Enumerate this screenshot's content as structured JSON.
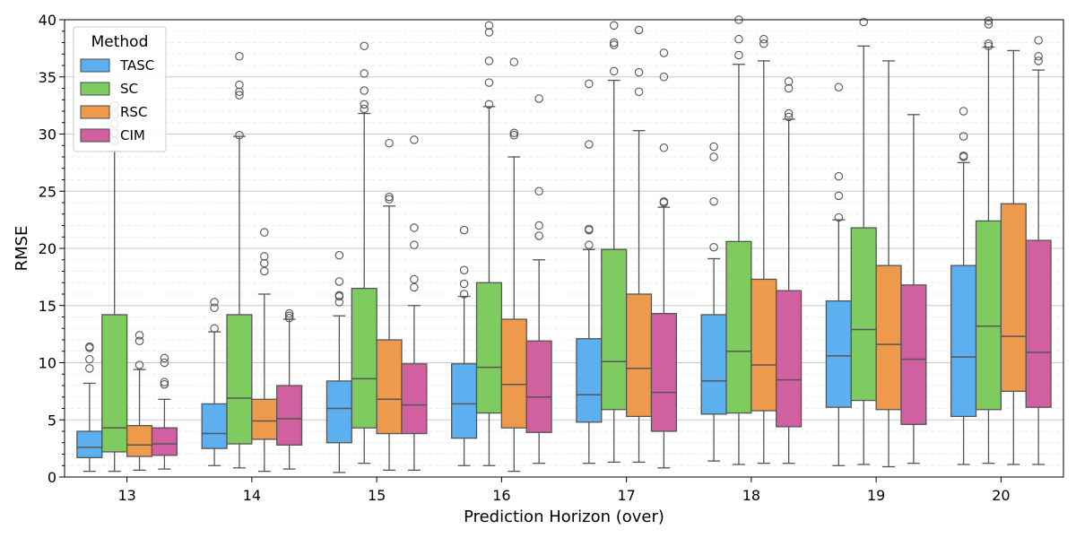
{
  "chart_data": {
    "type": "box",
    "title": "",
    "xlabel": "Prediction Horizon (over)",
    "ylabel": "RMSE",
    "ylim": [
      0,
      40
    ],
    "yticks": [
      0,
      5,
      10,
      15,
      20,
      25,
      30,
      35,
      40
    ],
    "grid": "horizontal",
    "legend": {
      "title": "Method",
      "placement": "top-left"
    },
    "categories": [
      "13",
      "14",
      "15",
      "16",
      "17",
      "18",
      "19",
      "20"
    ],
    "series": [
      {
        "name": "TASC",
        "color": "#5DB0F0",
        "boxes": [
          {
            "whislo": 0.5,
            "q1": 1.7,
            "med": 2.6,
            "q3": 4.0,
            "whishi": 8.2,
            "fliers": [
              9.5,
              10.3,
              11.3,
              11.4
            ]
          },
          {
            "whislo": 1.0,
            "q1": 2.5,
            "med": 3.8,
            "q3": 6.4,
            "whishi": 12.7,
            "fliers": [
              13.0,
              14.8,
              15.3
            ]
          },
          {
            "whislo": 0.4,
            "q1": 3.0,
            "med": 6.0,
            "q3": 8.4,
            "whishi": 14.1,
            "fliers": [
              15.3,
              15.8,
              15.9,
              17.1,
              19.4
            ]
          },
          {
            "whislo": 1.0,
            "q1": 3.4,
            "med": 6.4,
            "q3": 9.9,
            "whishi": 15.8,
            "fliers": [
              16.0,
              16.9,
              18.1,
              21.6
            ]
          },
          {
            "whislo": 1.2,
            "q1": 4.8,
            "med": 7.2,
            "q3": 12.1,
            "whishi": 19.9,
            "fliers": [
              20.3,
              21.6,
              21.7,
              29.1,
              34.4
            ]
          },
          {
            "whislo": 1.4,
            "q1": 5.5,
            "med": 8.4,
            "q3": 14.2,
            "whishi": 19.1,
            "fliers": [
              20.1,
              24.1,
              28.0,
              28.9
            ]
          },
          {
            "whislo": 1.0,
            "q1": 6.1,
            "med": 10.6,
            "q3": 15.4,
            "whishi": 22.5,
            "fliers": [
              22.7,
              24.6,
              26.3,
              34.1
            ]
          },
          {
            "whislo": 1.1,
            "q1": 5.3,
            "med": 10.5,
            "q3": 18.5,
            "whishi": 27.5,
            "fliers": [
              28.0,
              28.1,
              29.8,
              32.0
            ]
          }
        ]
      },
      {
        "name": "SC",
        "color": "#7ECB5F",
        "boxes": [
          {
            "whislo": 0.5,
            "q1": 2.2,
            "med": 4.3,
            "q3": 14.2,
            "whishi": 28.5,
            "fliers": [
              29.4,
              30.1,
              30.9,
              31.7,
              32.5
            ]
          },
          {
            "whislo": 0.8,
            "q1": 2.9,
            "med": 6.9,
            "q3": 14.2,
            "whishi": 29.8,
            "fliers": [
              29.9,
              33.4,
              33.7,
              34.3,
              36.8
            ]
          },
          {
            "whislo": 1.2,
            "q1": 4.3,
            "med": 8.6,
            "q3": 16.5,
            "whishi": 31.8,
            "fliers": [
              32.2,
              32.6,
              33.8,
              35.3,
              37.7
            ]
          },
          {
            "whislo": 1.0,
            "q1": 5.6,
            "med": 9.6,
            "q3": 17.0,
            "whishi": 32.4,
            "fliers": [
              32.6,
              34.5,
              36.4,
              38.9,
              39.5
            ]
          },
          {
            "whislo": 1.3,
            "q1": 5.9,
            "med": 10.1,
            "q3": 19.9,
            "whishi": 34.7,
            "fliers": [
              35.5,
              37.8,
              38.0,
              39.5
            ]
          },
          {
            "whislo": 1.1,
            "q1": 5.6,
            "med": 11.0,
            "q3": 20.6,
            "whishi": 36.1,
            "fliers": [
              36.9,
              38.3,
              40.0
            ]
          },
          {
            "whislo": 1.1,
            "q1": 6.7,
            "med": 12.9,
            "q3": 21.8,
            "whishi": 37.7,
            "fliers": [
              39.8
            ]
          },
          {
            "whislo": 1.2,
            "q1": 5.9,
            "med": 13.2,
            "q3": 22.4,
            "whishi": 37.6,
            "fliers": [
              37.7,
              37.9,
              39.6,
              39.9
            ]
          }
        ]
      },
      {
        "name": "RSC",
        "color": "#EE9A4D",
        "boxes": [
          {
            "whislo": 0.6,
            "q1": 1.8,
            "med": 2.8,
            "q3": 4.5,
            "whishi": 9.4,
            "fliers": [
              9.8,
              11.9,
              12.4
            ]
          },
          {
            "whislo": 0.5,
            "q1": 3.3,
            "med": 4.9,
            "q3": 6.8,
            "whishi": 16.0,
            "fliers": [
              18.0,
              18.7,
              19.3,
              21.4
            ]
          },
          {
            "whislo": 0.6,
            "q1": 3.8,
            "med": 6.8,
            "q3": 12.0,
            "whishi": 23.7,
            "fliers": [
              24.3,
              24.5,
              29.2
            ]
          },
          {
            "whislo": 0.5,
            "q1": 4.3,
            "med": 8.1,
            "q3": 13.8,
            "whishi": 28.0,
            "fliers": [
              29.9,
              30.1,
              36.3
            ]
          },
          {
            "whislo": 1.3,
            "q1": 5.3,
            "med": 9.5,
            "q3": 16.0,
            "whishi": 30.3,
            "fliers": [
              33.7,
              35.4,
              39.1
            ]
          },
          {
            "whislo": 1.2,
            "q1": 5.8,
            "med": 9.8,
            "q3": 17.3,
            "whishi": 36.4,
            "fliers": [
              37.9,
              38.3
            ]
          },
          {
            "whislo": 0.9,
            "q1": 5.9,
            "med": 11.6,
            "q3": 18.5,
            "whishi": 36.4,
            "fliers": []
          },
          {
            "whislo": 1.1,
            "q1": 7.5,
            "med": 12.3,
            "q3": 23.9,
            "whishi": 37.3,
            "fliers": []
          }
        ]
      },
      {
        "name": "CIM",
        "color": "#D060A0",
        "boxes": [
          {
            "whislo": 0.7,
            "q1": 1.9,
            "med": 2.9,
            "q3": 4.3,
            "whishi": 6.8,
            "fliers": [
              8.1,
              8.3,
              10.0,
              10.4
            ]
          },
          {
            "whislo": 0.7,
            "q1": 2.8,
            "med": 5.1,
            "q3": 8.0,
            "whishi": 13.8,
            "fliers": [
              13.9,
              14.1,
              14.3
            ]
          },
          {
            "whislo": 0.6,
            "q1": 3.8,
            "med": 6.3,
            "q3": 9.9,
            "whishi": 15.0,
            "fliers": [
              16.6,
              17.3,
              20.3,
              21.8,
              29.5
            ]
          },
          {
            "whislo": 1.2,
            "q1": 3.9,
            "med": 7.0,
            "q3": 11.9,
            "whishi": 19.0,
            "fliers": [
              21.1,
              22.0,
              25.0,
              33.1
            ]
          },
          {
            "whislo": 0.8,
            "q1": 4.0,
            "med": 7.4,
            "q3": 14.3,
            "whishi": 23.6,
            "fliers": [
              24.0,
              24.1,
              28.8,
              35.0,
              37.1
            ]
          },
          {
            "whislo": 1.2,
            "q1": 4.4,
            "med": 8.5,
            "q3": 16.3,
            "whishi": 31.3,
            "fliers": [
              31.5,
              31.8,
              34.0,
              34.6
            ]
          },
          {
            "whislo": 1.2,
            "q1": 4.6,
            "med": 10.3,
            "q3": 16.8,
            "whishi": 31.7,
            "fliers": []
          },
          {
            "whislo": 1.1,
            "q1": 6.1,
            "med": 10.9,
            "q3": 20.7,
            "whishi": 35.6,
            "fliers": [
              36.4,
              36.8,
              38.2
            ]
          }
        ]
      }
    ]
  }
}
